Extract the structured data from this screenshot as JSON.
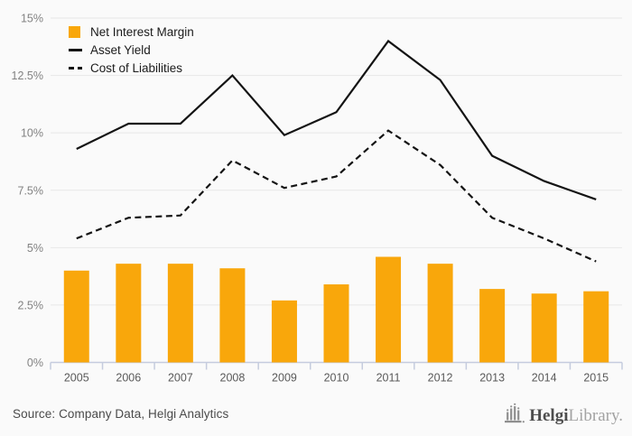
{
  "chart_data": {
    "type": "combo",
    "title": "",
    "xlabel": "",
    "ylabel": "",
    "categories": [
      "2005",
      "2006",
      "2007",
      "2008",
      "2009",
      "2010",
      "2011",
      "2012",
      "2013",
      "2014",
      "2015"
    ],
    "series": [
      {
        "name": "Net Interest Margin",
        "type": "bar",
        "line_style": "none",
        "color": "#F9A70B",
        "values": [
          4.0,
          4.3,
          4.3,
          4.1,
          2.7,
          3.4,
          4.6,
          4.3,
          3.2,
          3.0,
          3.1
        ]
      },
      {
        "name": "Asset Yield",
        "type": "line",
        "line_style": "solid",
        "color": "#141414",
        "values": [
          9.3,
          10.4,
          10.4,
          12.5,
          9.9,
          10.9,
          14.0,
          12.3,
          9.0,
          7.9,
          7.1
        ]
      },
      {
        "name": "Cost of Liabilities",
        "type": "line",
        "line_style": "dashed",
        "color": "#141414",
        "values": [
          5.4,
          6.3,
          6.4,
          8.8,
          7.6,
          8.1,
          10.1,
          8.6,
          6.3,
          5.4,
          4.4
        ]
      }
    ],
    "ylim": [
      0,
      15
    ],
    "ytick_values": [
      0,
      2.5,
      5,
      7.5,
      10,
      12.5,
      15
    ],
    "ytick_labels": [
      "0%",
      "2.5%",
      "5%",
      "7.5%",
      "10%",
      "12.5%",
      "15%"
    ],
    "grid": true,
    "legend_position": "top-left"
  },
  "footer": {
    "source": "Source: Company Data, Helgi Analytics",
    "logo_bold": "Helgi",
    "logo_light": "Library."
  },
  "colors": {
    "background": "#FAFAFA",
    "gridline": "#E7E7E7",
    "axis": "#C5CCDE",
    "ytick_text": "#828282",
    "xtick_text": "#5A5A5A",
    "legend_text": "#1B1B1B",
    "source_text": "#4A4A4A",
    "logo_dark": "#4D4D4D",
    "logo_light_color": "#A3A3A3",
    "logo_icon": "#8F8F8F"
  }
}
